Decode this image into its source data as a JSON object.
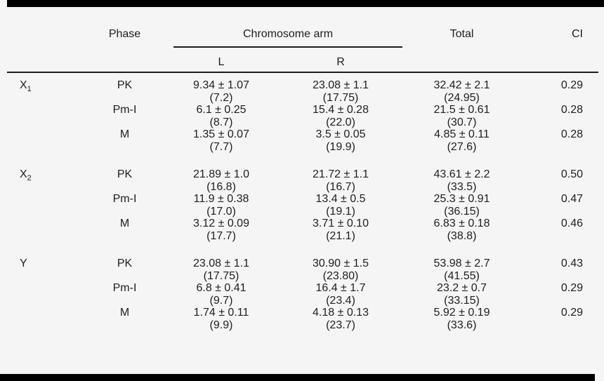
{
  "header": {
    "phase": "Phase",
    "chromosome_arm": "Chromosome arm",
    "arm_left": "L",
    "arm_right": "R",
    "total": "Total",
    "ci": "CI"
  },
  "groups": [
    {
      "label": "X",
      "sub": "1",
      "rows": [
        {
          "phase": "PK",
          "l": "9.34 ± 1.07",
          "lp": "(7.2)",
          "r": "23.08 ± 1.1",
          "rp": "(17.75)",
          "t": "32.42 ± 2.1",
          "tp": "(24.95)",
          "ci": "0.29"
        },
        {
          "phase": "Pm-I",
          "l": "6.1 ± 0.25",
          "lp": "(8.7)",
          "r": "15.4 ± 0.28",
          "rp": "(22.0)",
          "t": "21.5 ± 0.61",
          "tp": "(30.7)",
          "ci": "0.28"
        },
        {
          "phase": "M",
          "l": "1.35 ± 0.07",
          "lp": "(7.7)",
          "r": "3.5 ± 0.05",
          "rp": "(19.9)",
          "t": "4.85 ± 0.11",
          "tp": "(27.6)",
          "ci": "0.28"
        }
      ]
    },
    {
      "label": "X",
      "sub": "2",
      "rows": [
        {
          "phase": "PK",
          "l": "21.89 ± 1.0",
          "lp": "(16.8)",
          "r": "21.72 ± 1.1",
          "rp": "(16.7)",
          "t": "43.61 ± 2.2",
          "tp": "(33.5)",
          "ci": "0.50"
        },
        {
          "phase": "Pm-I",
          "l": "11.9 ± 0.38",
          "lp": "(17.0)",
          "r": "13.4 ± 0.5",
          "rp": "(19.1)",
          "t": "25.3 ± 0.91",
          "tp": "(36.15)",
          "ci": "0.47"
        },
        {
          "phase": "M",
          "l": "3.12 ± 0.09",
          "lp": "(17.7)",
          "r": "3.71 ± 0.10",
          "rp": "(21.1)",
          "t": "6.83 ± 0.18",
          "tp": "(38.8)",
          "ci": "0.46"
        }
      ]
    },
    {
      "label": "Y",
      "sub": "",
      "rows": [
        {
          "phase": "PK",
          "l": "23.08 ± 1.1",
          "lp": "(17.75)",
          "r": "30.90 ± 1.5",
          "rp": "(23.80)",
          "t": "53.98 ± 2.7",
          "tp": "(41.55)",
          "ci": "0.43"
        },
        {
          "phase": "Pm-I",
          "l": "6.8 ± 0.41",
          "lp": "(9.7)",
          "r": "16.4 ± 1.7",
          "rp": "(23.4)",
          "t": "23.2 ± 0.7",
          "tp": "(33.15)",
          "ci": "0.29"
        },
        {
          "phase": "M",
          "l": "1.74 ± 0.11",
          "lp": "(9.9)",
          "r": "4.18 ± 0.13",
          "rp": "(23.7)",
          "t": "5.92 ± 0.19",
          "tp": "(33.6)",
          "ci": "0.29"
        }
      ]
    }
  ],
  "colors": {
    "background": "#f5f5f5",
    "text": "#1e1e1e",
    "rule": "#1c1c1c",
    "bar": "#000000"
  }
}
